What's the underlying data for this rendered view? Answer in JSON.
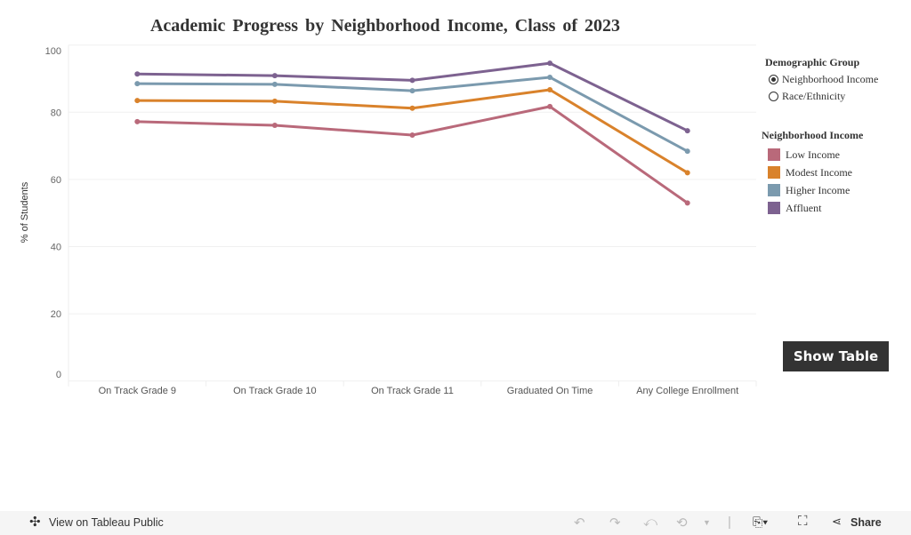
{
  "chart_data": {
    "type": "line",
    "title": "Academic Progress by Neighborhood Income, Class of 2023",
    "ylabel": "% of Students",
    "xlabel": "",
    "ylim": [
      0,
      100
    ],
    "yticks": [
      "0",
      "20",
      "40",
      "60",
      "80",
      "100"
    ],
    "categories": [
      "On Track Grade 9",
      "On Track Grade 10",
      "On Track Grade 11",
      "Graduated On Time",
      "Any College Enrollment"
    ],
    "grid": true,
    "legend_position": "right",
    "series": [
      {
        "name": "Low Income",
        "color": "#b9697a",
        "values": [
          77.2,
          76.1,
          73.2,
          81.7,
          53.0
        ]
      },
      {
        "name": "Modest Income",
        "color": "#d9822b",
        "values": [
          83.5,
          83.3,
          81.2,
          86.7,
          62.0
        ]
      },
      {
        "name": "Higher Income",
        "color": "#7b9aae",
        "values": [
          88.5,
          88.3,
          86.4,
          90.4,
          68.4
        ]
      },
      {
        "name": "Affluent",
        "color": "#7d6290",
        "values": [
          91.4,
          90.9,
          89.5,
          94.6,
          74.5
        ]
      }
    ]
  },
  "filter": {
    "title": "Demographic Group",
    "options": [
      {
        "label": "Neighborhood Income",
        "selected": true
      },
      {
        "label": "Race/Ethnicity",
        "selected": false
      }
    ]
  },
  "legend": {
    "title": "Neighborhood Income"
  },
  "show_table_label": "Show Table",
  "footer": {
    "view_label": "View on Tableau Public",
    "share_label": "Share"
  }
}
